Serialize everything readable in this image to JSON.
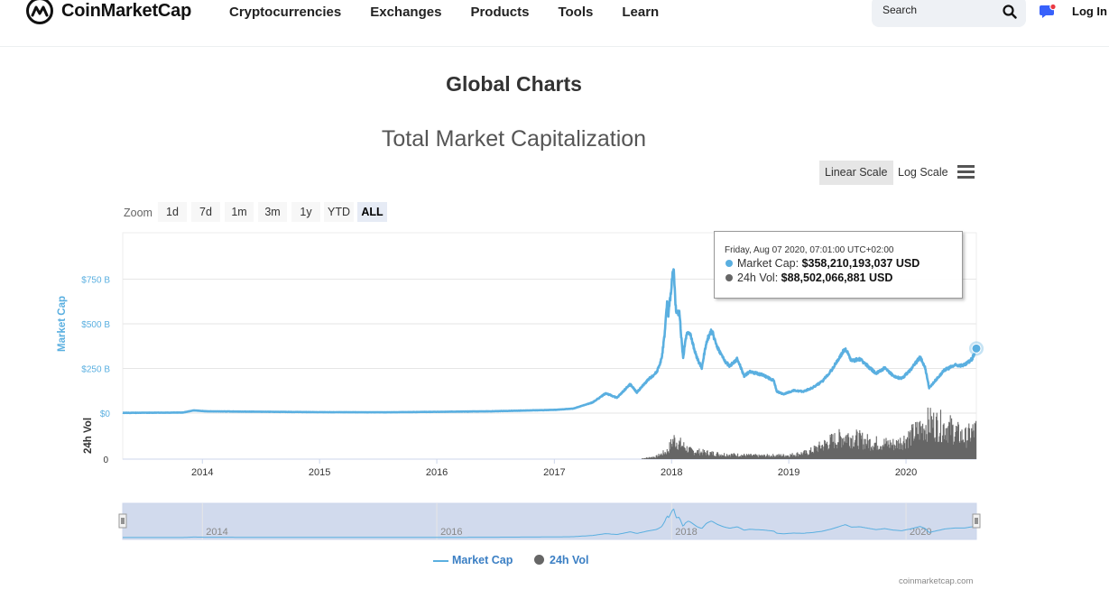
{
  "brand": {
    "name": "CoinMarketCap"
  },
  "nav": {
    "items": [
      "Cryptocurrencies",
      "Exchanges",
      "Products",
      "Tools",
      "Learn"
    ],
    "login": "Log In"
  },
  "search": {
    "placeholder": "Search"
  },
  "page": {
    "title": "Global Charts"
  },
  "controls": {
    "linear": "Linear Scale",
    "log": "Log Scale",
    "zoom_label": "Zoom",
    "zoom": [
      "1d",
      "7d",
      "1m",
      "3m",
      "1y",
      "YTD",
      "ALL"
    ],
    "zoom_active": "ALL"
  },
  "tooltip": {
    "date": "Friday, Aug 07 2020, 07:01:00 UTC+02:00",
    "mc_label": "Market Cap:",
    "mc_value": "$358,210,193,037 USD",
    "vol_label": "24h Vol:",
    "vol_value": "$88,502,066,881 USD"
  },
  "colors": {
    "market_cap": "#5aafe0",
    "volume": "#666666",
    "accent": "#3b7fc4"
  },
  "icons": {
    "search": "search-icon",
    "chat": "chat-icon",
    "menu": "menu-icon"
  },
  "credit": "coinmarketcap.com",
  "chart_data": {
    "type": "line",
    "title": "Total Market Capitalization",
    "x_range": [
      "2013-04-28",
      "2020-08-07"
    ],
    "xticks": [
      "2014",
      "2015",
      "2016",
      "2017",
      "2018",
      "2019",
      "2020"
    ],
    "grid": true,
    "legend_placement": "bottom-center",
    "axes": {
      "market_cap": {
        "label": "Market Cap",
        "ticks": [
          "$0",
          "$250 B",
          "$500 B",
          "$750 B"
        ],
        "range_billions": [
          0,
          1000
        ]
      },
      "volume": {
        "label": "24h Vol",
        "ticks": [
          "0"
        ]
      }
    },
    "series": [
      {
        "name": "Market Cap",
        "unit": "USD billions",
        "points": [
          [
            "2013-04-28",
            1.5
          ],
          [
            "2013-11-01",
            3
          ],
          [
            "2013-12-05",
            15
          ],
          [
            "2014-01-15",
            10
          ],
          [
            "2014-06-01",
            8
          ],
          [
            "2015-01-15",
            5
          ],
          [
            "2015-08-01",
            4.5
          ],
          [
            "2016-01-01",
            7
          ],
          [
            "2016-06-15",
            10
          ],
          [
            "2017-01-01",
            18
          ],
          [
            "2017-03-01",
            25
          ],
          [
            "2017-05-01",
            60
          ],
          [
            "2017-06-10",
            110
          ],
          [
            "2017-07-15",
            85
          ],
          [
            "2017-08-25",
            160
          ],
          [
            "2017-09-15",
            115
          ],
          [
            "2017-10-20",
            185
          ],
          [
            "2017-11-15",
            225
          ],
          [
            "2017-12-01",
            300
          ],
          [
            "2017-12-10",
            430
          ],
          [
            "2017-12-18",
            610
          ],
          [
            "2017-12-22",
            540
          ],
          [
            "2017-12-28",
            640
          ],
          [
            "2018-01-07",
            820
          ],
          [
            "2018-01-15",
            550
          ],
          [
            "2018-01-25",
            560
          ],
          [
            "2018-02-06",
            300
          ],
          [
            "2018-02-12",
            395
          ],
          [
            "2018-02-22",
            460
          ],
          [
            "2018-03-01",
            430
          ],
          [
            "2018-03-20",
            310
          ],
          [
            "2018-04-05",
            250
          ],
          [
            "2018-04-20",
            400
          ],
          [
            "2018-05-05",
            460
          ],
          [
            "2018-05-25",
            360
          ],
          [
            "2018-06-15",
            290
          ],
          [
            "2018-07-01",
            260
          ],
          [
            "2018-07-25",
            300
          ],
          [
            "2018-08-15",
            205
          ],
          [
            "2018-09-01",
            230
          ],
          [
            "2018-10-15",
            210
          ],
          [
            "2018-11-15",
            180
          ],
          [
            "2018-11-25",
            120
          ],
          [
            "2018-12-15",
            105
          ],
          [
            "2019-01-15",
            125
          ],
          [
            "2019-02-15",
            120
          ],
          [
            "2019-03-15",
            140
          ],
          [
            "2019-04-15",
            175
          ],
          [
            "2019-05-15",
            240
          ],
          [
            "2019-06-26",
            360
          ],
          [
            "2019-07-15",
            290
          ],
          [
            "2019-08-10",
            300
          ],
          [
            "2019-09-01",
            265
          ],
          [
            "2019-09-30",
            220
          ],
          [
            "2019-10-26",
            250
          ],
          [
            "2019-11-20",
            210
          ],
          [
            "2019-12-18",
            190
          ],
          [
            "2020-01-15",
            240
          ],
          [
            "2020-02-14",
            310
          ],
          [
            "2020-03-01",
            250
          ],
          [
            "2020-03-13",
            140
          ],
          [
            "2020-04-01",
            180
          ],
          [
            "2020-05-01",
            240
          ],
          [
            "2020-06-01",
            265
          ],
          [
            "2020-07-01",
            265
          ],
          [
            "2020-07-25",
            300
          ],
          [
            "2020-08-07",
            358.2
          ]
        ]
      },
      {
        "name": "24h Vol",
        "unit": "USD billions",
        "points": [
          [
            "2017-10-01",
            2
          ],
          [
            "2017-11-15",
            8
          ],
          [
            "2017-12-20",
            25
          ],
          [
            "2018-01-07",
            60
          ],
          [
            "2018-03-01",
            25
          ],
          [
            "2018-06-01",
            15
          ],
          [
            "2018-10-01",
            10
          ],
          [
            "2019-01-01",
            12
          ],
          [
            "2019-03-01",
            20
          ],
          [
            "2019-05-15",
            55
          ],
          [
            "2019-07-01",
            70
          ],
          [
            "2019-09-15",
            50
          ],
          [
            "2019-12-01",
            45
          ],
          [
            "2020-01-15",
            70
          ],
          [
            "2020-03-13",
            110
          ],
          [
            "2020-05-15",
            95
          ],
          [
            "2020-07-01",
            65
          ],
          [
            "2020-08-07",
            88.5
          ]
        ]
      }
    ]
  }
}
